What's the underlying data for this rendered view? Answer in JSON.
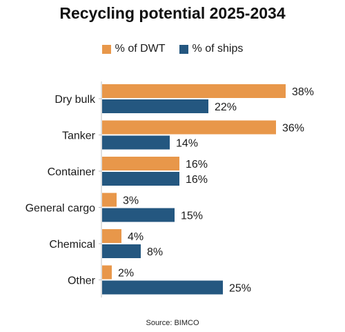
{
  "colors": {
    "dwt": "#e8974a",
    "ships": "#245780"
  },
  "chart_data": {
    "type": "bar",
    "orientation": "horizontal",
    "title": "Recycling potential 2025-2034",
    "categories": [
      "Dry bulk",
      "Tanker",
      "Container",
      "General cargo",
      "Chemical",
      "Other"
    ],
    "series": [
      {
        "name": "% of DWT",
        "values": [
          38,
          36,
          16,
          3,
          4,
          2
        ]
      },
      {
        "name": "% of ships",
        "values": [
          22,
          14,
          16,
          15,
          8,
          25
        ]
      }
    ],
    "value_format": "percent",
    "xlim": [
      0,
      40
    ],
    "grid": false,
    "legend_position": "top"
  },
  "source": "Source: BIMCO"
}
